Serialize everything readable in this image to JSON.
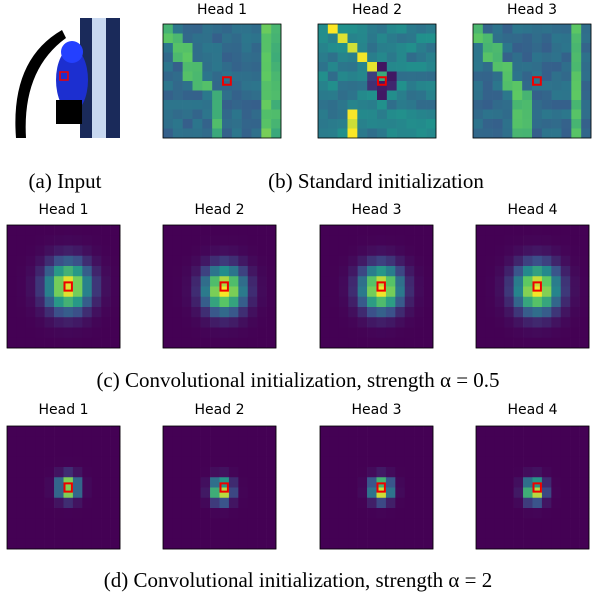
{
  "panels": {
    "a": {
      "caption": "(a) Input"
    },
    "b": {
      "caption": "(b) Standard initialization",
      "heads": [
        "Head 1",
        "Head 2",
        "Head 3"
      ]
    },
    "c": {
      "caption": "(c) Convolutional initialization, strength α = 0.5",
      "heads": [
        "Head 1",
        "Head 2",
        "Head 3",
        "Head 4"
      ]
    },
    "d": {
      "caption": "(d) Convolutional initialization, strength α = 2",
      "heads": [
        "Head 1",
        "Head 2",
        "Head 3",
        "Head 4"
      ]
    }
  }
}
